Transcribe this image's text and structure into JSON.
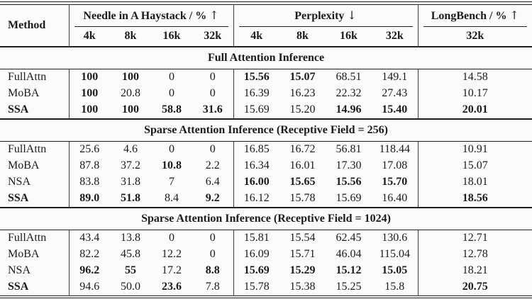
{
  "colors": {
    "text": "#1b1b1b",
    "rule": "#1f1f1f",
    "divider": "#3c3c3c",
    "background": "#fbfbfb"
  },
  "header": {
    "method_label": "Method",
    "groups": [
      {
        "label": "Needle in A Haystack / %",
        "arrow": "↑",
        "subcols": [
          "4k",
          "8k",
          "16k",
          "32k"
        ]
      },
      {
        "label": "Perplexity",
        "arrow": "↓",
        "subcols": [
          "4k",
          "8k",
          "16k",
          "32k"
        ]
      },
      {
        "label": "LongBench / %",
        "arrow": "↑",
        "subcols": [
          "32k"
        ]
      }
    ]
  },
  "sections": [
    {
      "title": "Full Attention Inference",
      "rows": [
        {
          "method": {
            "v": "FullAttn"
          },
          "cells": [
            {
              "v": "100",
              "b": true
            },
            {
              "v": "100",
              "b": true
            },
            {
              "v": "0"
            },
            {
              "v": "0"
            },
            {
              "v": "15.56",
              "b": true
            },
            {
              "v": "15.07",
              "b": true
            },
            {
              "v": "68.51"
            },
            {
              "v": "149.1"
            },
            {
              "v": "14.58"
            }
          ]
        },
        {
          "method": {
            "v": "MoBA"
          },
          "cells": [
            {
              "v": "100",
              "b": true
            },
            {
              "v": "20.8"
            },
            {
              "v": "0"
            },
            {
              "v": "0"
            },
            {
              "v": "16.39"
            },
            {
              "v": "16.23"
            },
            {
              "v": "22.32"
            },
            {
              "v": "27.43"
            },
            {
              "v": "10.17"
            }
          ]
        },
        {
          "method": {
            "v": "SSA",
            "b": true
          },
          "cells": [
            {
              "v": "100",
              "b": true
            },
            {
              "v": "100",
              "b": true
            },
            {
              "v": "58.8",
              "b": true
            },
            {
              "v": "31.6",
              "b": true
            },
            {
              "v": "15.69"
            },
            {
              "v": "15.20"
            },
            {
              "v": "14.96",
              "b": true
            },
            {
              "v": "15.40",
              "b": true
            },
            {
              "v": "20.01",
              "b": true
            }
          ]
        }
      ]
    },
    {
      "title": "Sparse Attention Inference (Receptive Field = 256)",
      "rows": [
        {
          "method": {
            "v": "FullAttn"
          },
          "cells": [
            {
              "v": "25.6"
            },
            {
              "v": "4.6"
            },
            {
              "v": "0"
            },
            {
              "v": "0"
            },
            {
              "v": "16.85"
            },
            {
              "v": "16.72"
            },
            {
              "v": "56.81"
            },
            {
              "v": "118.44"
            },
            {
              "v": "10.91"
            }
          ]
        },
        {
          "method": {
            "v": "MoBA"
          },
          "cells": [
            {
              "v": "87.8"
            },
            {
              "v": "37.2"
            },
            {
              "v": "10.8",
              "b": true
            },
            {
              "v": "2.2"
            },
            {
              "v": "16.34"
            },
            {
              "v": "16.01"
            },
            {
              "v": "17.30"
            },
            {
              "v": "17.08"
            },
            {
              "v": "15.07"
            }
          ]
        },
        {
          "method": {
            "v": "NSA"
          },
          "cells": [
            {
              "v": "83.8"
            },
            {
              "v": "31.8"
            },
            {
              "v": "7"
            },
            {
              "v": "6.4"
            },
            {
              "v": "16.00",
              "b": true
            },
            {
              "v": "15.65",
              "b": true
            },
            {
              "v": "15.56",
              "b": true
            },
            {
              "v": "15.70",
              "b": true
            },
            {
              "v": "18.01"
            }
          ]
        },
        {
          "method": {
            "v": "SSA",
            "b": true
          },
          "cells": [
            {
              "v": "89.0",
              "b": true
            },
            {
              "v": "51.8",
              "b": true
            },
            {
              "v": "8.4"
            },
            {
              "v": "9.2",
              "b": true
            },
            {
              "v": "16.12"
            },
            {
              "v": "15.78"
            },
            {
              "v": "15.69"
            },
            {
              "v": "16.40"
            },
            {
              "v": "18.56",
              "b": true
            }
          ]
        }
      ]
    },
    {
      "title": "Sparse Attention Inference (Receptive Field = 1024)",
      "rows": [
        {
          "method": {
            "v": "FullAttn"
          },
          "cells": [
            {
              "v": "43.4"
            },
            {
              "v": "13.8"
            },
            {
              "v": "0"
            },
            {
              "v": "0"
            },
            {
              "v": "15.81"
            },
            {
              "v": "15.54"
            },
            {
              "v": "62.45"
            },
            {
              "v": "130.6"
            },
            {
              "v": "12.71"
            }
          ]
        },
        {
          "method": {
            "v": "MoBA"
          },
          "cells": [
            {
              "v": "82.2"
            },
            {
              "v": "45.8"
            },
            {
              "v": "12.2"
            },
            {
              "v": "0"
            },
            {
              "v": "16.09"
            },
            {
              "v": "15.71"
            },
            {
              "v": "46.04"
            },
            {
              "v": "115.04"
            },
            {
              "v": "12.78"
            }
          ]
        },
        {
          "method": {
            "v": "NSA"
          },
          "cells": [
            {
              "v": "96.2",
              "b": true
            },
            {
              "v": "55",
              "b": true
            },
            {
              "v": "17.2"
            },
            {
              "v": "8.8",
              "b": true
            },
            {
              "v": "15.69",
              "b": true
            },
            {
              "v": "15.29",
              "b": true
            },
            {
              "v": "15.12",
              "b": true
            },
            {
              "v": "15.05",
              "b": true
            },
            {
              "v": "18.21"
            }
          ]
        },
        {
          "method": {
            "v": "SSA",
            "b": true
          },
          "cells": [
            {
              "v": "94.6"
            },
            {
              "v": "50.0"
            },
            {
              "v": "23.6",
              "b": true
            },
            {
              "v": "7.8"
            },
            {
              "v": "15.78"
            },
            {
              "v": "15.38"
            },
            {
              "v": "15.25"
            },
            {
              "v": "15.8"
            },
            {
              "v": "20.75",
              "b": true
            }
          ]
        }
      ]
    }
  ]
}
